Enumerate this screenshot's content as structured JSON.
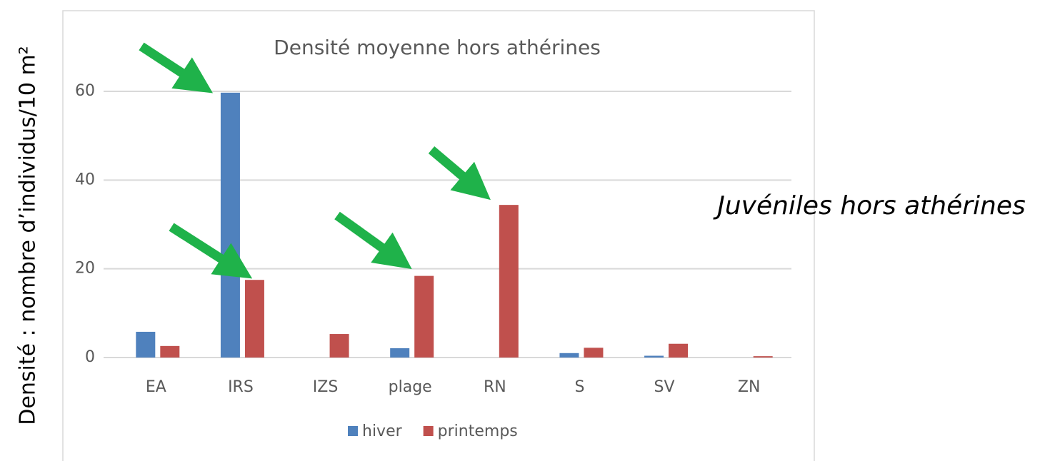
{
  "chart_data": {
    "type": "bar",
    "title": "Densité moyenne hors athérines",
    "y_label": "Densité : nombre d’individus/10 m²",
    "annotation": "Juvéniles hors athérines",
    "categories": [
      "EA",
      "IRS",
      "IZS",
      "plage",
      "RN",
      "S",
      "SV",
      "ZN"
    ],
    "series": [
      {
        "name": "hiver",
        "color": "#4f81bd",
        "values": [
          5.8,
          59.7,
          0,
          2.1,
          0,
          1.0,
          0.4,
          0
        ]
      },
      {
        "name": "printemps",
        "color": "#c0504d",
        "values": [
          2.6,
          17.5,
          5.3,
          18.4,
          34.4,
          2.2,
          3.1,
          0.3
        ]
      }
    ],
    "ylim": [
      0,
      70
    ],
    "yticks": [
      0,
      20,
      40,
      60
    ],
    "grid": true,
    "legend": "bottom"
  }
}
